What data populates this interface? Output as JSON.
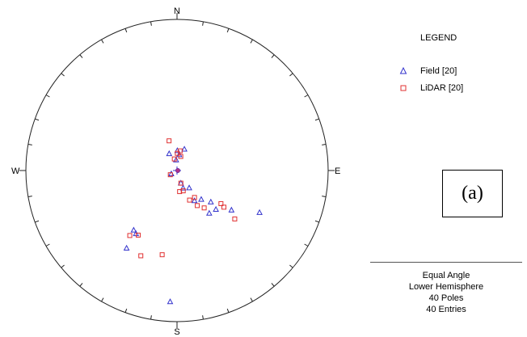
{
  "directions": {
    "north": "N",
    "south": "S",
    "east": "E",
    "west": "W"
  },
  "legend": {
    "title": "LEGEND",
    "entries": [
      {
        "label": "Field [20]",
        "symbol": "triangle-icon",
        "color": "#3333cc"
      },
      {
        "label": "LiDAR [20]",
        "symbol": "square-icon",
        "color": "#e03030"
      }
    ]
  },
  "panel_label": "(a)",
  "summary": [
    "Equal Angle",
    "Lower Hemisphere",
    "40 Poles",
    "40 Entries"
  ],
  "chart_data": {
    "type": "scatter",
    "projection": "Equal Angle",
    "hemisphere": "Lower Hemisphere",
    "unit": "trend/plunge (deg)",
    "series": [
      {
        "name": "Field [20]",
        "marker": "triangle",
        "color": "#3333cc",
        "points": [
          [
            355,
            82
          ],
          [
            8,
            78
          ],
          [
            335,
            76
          ],
          [
            19,
            73
          ],
          [
            163,
            80
          ],
          [
            161,
            76
          ],
          [
            145,
            74
          ],
          [
            150,
            64
          ],
          [
            140,
            62
          ],
          [
            133,
            56
          ],
          [
            126,
            42
          ],
          [
            117,
            27
          ],
          [
            143,
            51
          ],
          [
            135,
            50
          ],
          [
            240,
            85
          ],
          [
            216,
            38
          ],
          [
            213,
            37
          ],
          [
            213,
            27
          ],
          [
            183,
            8
          ],
          [
            1,
            75
          ]
        ]
      },
      {
        "name": "LiDAR [20]",
        "marker": "square",
        "color": "#e03030",
        "points": [
          [
            347,
            81
          ],
          [
            1,
            77
          ],
          [
            9,
            75
          ],
          [
            15,
            79
          ],
          [
            345,
            67
          ],
          [
            163,
            80
          ],
          [
            163,
            74
          ],
          [
            173,
            74
          ],
          [
            157,
            66
          ],
          [
            150,
            60
          ],
          [
            147,
            66
          ],
          [
            144,
            56
          ],
          [
            128,
            47
          ],
          [
            130,
            37
          ],
          [
            127,
            50
          ],
          [
            238,
            84
          ],
          [
            216,
            34
          ],
          [
            211,
            37
          ],
          [
            203,
            27
          ],
          [
            190,
            31
          ]
        ]
      }
    ],
    "center_marker": "mean pole"
  }
}
